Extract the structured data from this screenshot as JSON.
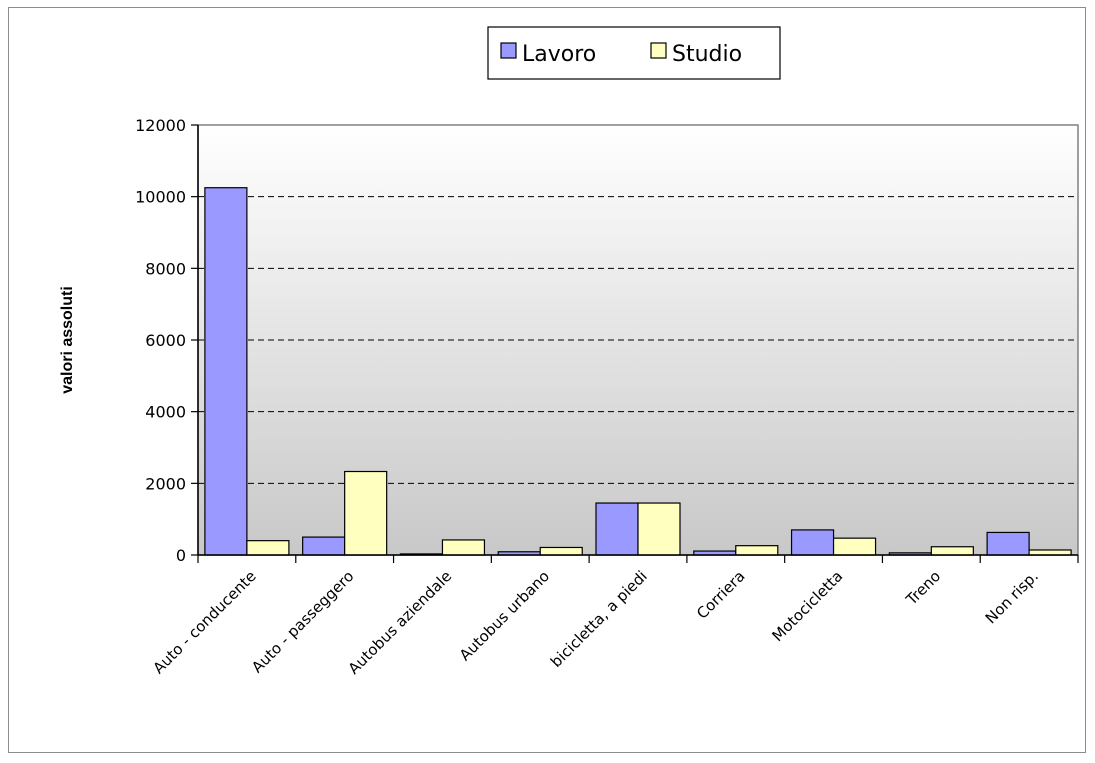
{
  "chart_data": {
    "type": "bar",
    "categories": [
      "Auto - conducente",
      "Auto - passeggero",
      "Autobus aziendale",
      "Autobus urbano",
      "bicicletta, a piedi",
      "Corriera",
      "Motocicletta",
      "Treno",
      "Non risp."
    ],
    "series": [
      {
        "name": "Lavoro",
        "color": "#9999ff",
        "values": [
          10250,
          500,
          30,
          90,
          1450,
          110,
          700,
          60,
          630
        ]
      },
      {
        "name": "Studio",
        "color": "#ffffc0",
        "values": [
          400,
          2330,
          420,
          210,
          1450,
          260,
          470,
          230,
          140
        ]
      }
    ],
    "ylabel": "valori assoluti",
    "xlabel": "",
    "ylim": [
      0,
      12000
    ],
    "yticks": [
      0,
      2000,
      4000,
      6000,
      8000,
      10000,
      12000
    ],
    "grid": true,
    "legend": "top"
  }
}
